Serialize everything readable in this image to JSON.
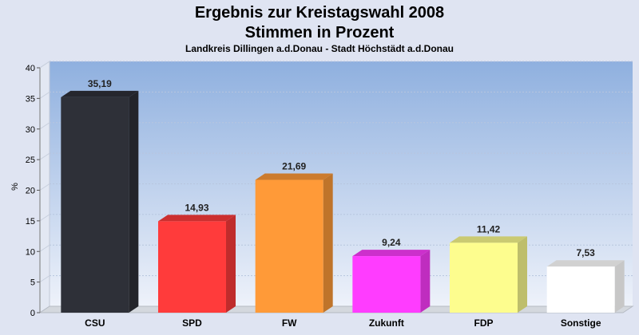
{
  "chart_data": {
    "type": "bar",
    "title": "Ergebnis zur Kreistagswahl 2008",
    "subtitle": "Stimmen in Prozent",
    "caption": "Landkreis Dillingen a.d.Donau - Stadt Höchstädt a.d.Donau",
    "ylabel": "%",
    "ylim": [
      0,
      40
    ],
    "yticks": [
      0,
      5,
      10,
      15,
      20,
      25,
      30,
      35,
      40
    ],
    "grid": true,
    "categories": [
      "CSU",
      "SPD",
      "FW",
      "Zukunft",
      "FDP",
      "Sonstige"
    ],
    "values": [
      35.19,
      14.93,
      21.69,
      9.24,
      11.42,
      7.53
    ],
    "value_labels": [
      "35,19",
      "14,93",
      "21,69",
      "9,24",
      "11,42",
      "7,53"
    ],
    "colors": [
      "#2e3038",
      "#ff3b3b",
      "#ff9a38",
      "#ff3cff",
      "#fdfd8e",
      "#ffffff"
    ]
  }
}
